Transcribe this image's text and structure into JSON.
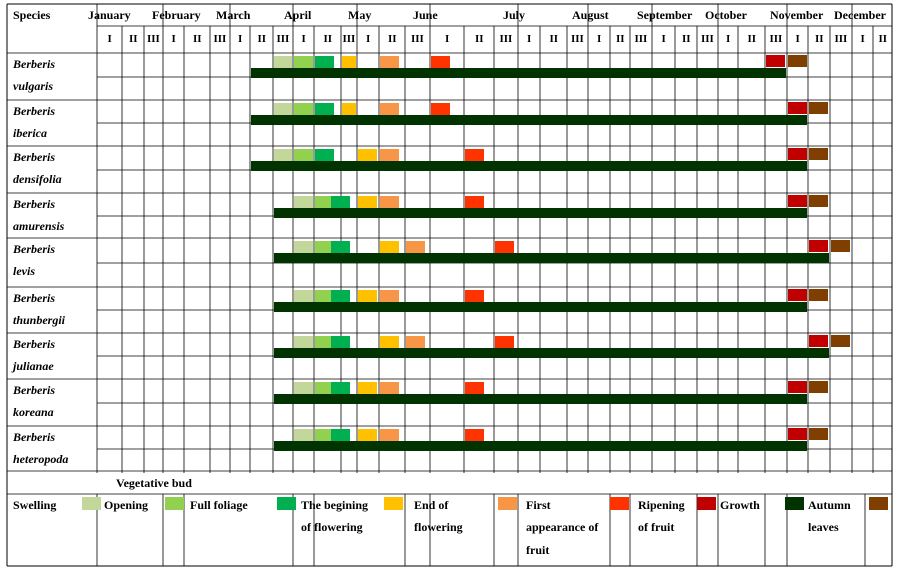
{
  "header": {
    "species_label": "Species",
    "months": [
      "January",
      "February",
      "March",
      "April",
      "May",
      "June",
      "July",
      "August",
      "September",
      "October",
      "November",
      "December"
    ],
    "decades": [
      "I",
      "II",
      "III"
    ]
  },
  "species": [
    {
      "genus": "Berberis",
      "epithet": "vulgaris"
    },
    {
      "genus": "Berberis",
      "epithet": "iberica"
    },
    {
      "genus": "Berberis",
      "epithet": "densifolia"
    },
    {
      "genus": "Berberis",
      "epithet": "amurensis"
    },
    {
      "genus": "Berberis",
      "epithet": "levis"
    },
    {
      "genus": "Berberis",
      "epithet": "thunbergii"
    },
    {
      "genus": "Berberis",
      "epithet": "julianae"
    },
    {
      "genus": "Berberis",
      "epithet": "koreana"
    },
    {
      "genus": "Berberis",
      "epithet": "heteropoda"
    }
  ],
  "legend": {
    "vegetative_bud": "Vegetative bud",
    "items": [
      {
        "key": "swelling",
        "line1": "Swelling",
        "line2": "",
        "line3": "",
        "color": "#c4d79b"
      },
      {
        "key": "opening",
        "line1": "Opening",
        "line2": "",
        "line3": "",
        "color": "#92d050"
      },
      {
        "key": "full_foliage",
        "line1": "Full foliage",
        "line2": "",
        "line3": "",
        "color": "#00b050"
      },
      {
        "key": "begin_flowering",
        "line1": "The begining",
        "line2": "of flowering",
        "line3": "",
        "color": "#ffc000"
      },
      {
        "key": "end_flowering",
        "line1": "End of",
        "line2": "flowering",
        "line3": "",
        "color": "#f79646"
      },
      {
        "key": "first_fruit",
        "line1": "First",
        "line2": "appearance of",
        "line3": "fruit",
        "color": "#ff3300"
      },
      {
        "key": "ripening",
        "line1": "Ripening",
        "line2": "of fruit",
        "line3": "",
        "color": "#c00000"
      },
      {
        "key": "growth",
        "line1": "Growth",
        "line2": "",
        "line3": "",
        "color": "#003300"
      },
      {
        "key": "autumn",
        "line1": "Autumn",
        "line2": "leaves",
        "line3": "",
        "color": "#7f3f00"
      }
    ]
  },
  "colors": {
    "swelling": "#c4d79b",
    "opening": "#92d050",
    "full_foliage": "#00b050",
    "begin_flowering": "#ffc000",
    "end_flowering": "#f79646",
    "first_fruit": "#ff3300",
    "ripening": "#c00000",
    "growth": "#003300",
    "autumn": "#7f3f00",
    "grid": "#000000"
  },
  "phenology": [
    {
      "species": "vulgaris",
      "marks": [
        [
          "swelling",
          "Mar III"
        ],
        [
          "opening",
          "Apr I"
        ],
        [
          "full_foliage",
          "Apr II"
        ],
        [
          "begin_flowering",
          "Apr III"
        ],
        [
          "end_flowering",
          "May II"
        ],
        [
          "first_fruit",
          "Jun I"
        ],
        [
          "ripening",
          "Oct III"
        ],
        [
          "autumn",
          "Nov I"
        ]
      ],
      "growth": [
        "Mar II",
        "Oct III"
      ]
    },
    {
      "species": "iberica",
      "marks": [
        [
          "swelling",
          "Mar III"
        ],
        [
          "opening",
          "Apr I"
        ],
        [
          "full_foliage",
          "Apr II"
        ],
        [
          "begin_flowering",
          "Apr III"
        ],
        [
          "end_flowering",
          "May II"
        ],
        [
          "first_fruit",
          "Jun I"
        ],
        [
          "ripening",
          "Nov I"
        ],
        [
          "autumn",
          "Nov II"
        ]
      ],
      "growth": [
        "Mar II",
        "Nov I"
      ]
    },
    {
      "species": "densifolia",
      "marks": [
        [
          "swelling",
          "Mar III"
        ],
        [
          "opening",
          "Apr I"
        ],
        [
          "full_foliage",
          "Apr II"
        ],
        [
          "begin_flowering",
          "May I"
        ],
        [
          "end_flowering",
          "May II"
        ],
        [
          "first_fruit",
          "Jun II"
        ],
        [
          "ripening",
          "Nov I"
        ],
        [
          "autumn",
          "Nov II"
        ]
      ],
      "growth": [
        "Mar II",
        "Nov I"
      ]
    },
    {
      "species": "amurensis",
      "marks": [
        [
          "swelling",
          "Apr I"
        ],
        [
          "opening",
          "Apr II"
        ],
        [
          "full_foliage",
          "Apr II"
        ],
        [
          "begin_flowering",
          "May I"
        ],
        [
          "end_flowering",
          "May II"
        ],
        [
          "first_fruit",
          "Jun II"
        ],
        [
          "ripening",
          "Nov I"
        ],
        [
          "autumn",
          "Nov II"
        ]
      ],
      "growth": [
        "Mar III",
        "Nov I"
      ]
    },
    {
      "species": "levis",
      "marks": [
        [
          "swelling",
          "Apr I"
        ],
        [
          "opening",
          "Apr II"
        ],
        [
          "full_foliage",
          "Apr II"
        ],
        [
          "begin_flowering",
          "May II"
        ],
        [
          "end_flowering",
          "May III"
        ],
        [
          "first_fruit",
          "Jun III"
        ],
        [
          "ripening",
          "Nov II"
        ],
        [
          "autumn",
          "Nov III"
        ]
      ],
      "growth": [
        "Mar III",
        "Nov II"
      ]
    },
    {
      "species": "thunbergii",
      "marks": [
        [
          "swelling",
          "Apr I"
        ],
        [
          "opening",
          "Apr II"
        ],
        [
          "full_foliage",
          "Apr II"
        ],
        [
          "begin_flowering",
          "May I"
        ],
        [
          "end_flowering",
          "May II"
        ],
        [
          "first_fruit",
          "Jun II"
        ],
        [
          "ripening",
          "Nov I"
        ],
        [
          "autumn",
          "Nov II"
        ]
      ],
      "growth": [
        "Mar III",
        "Nov I"
      ]
    },
    {
      "species": "julianae",
      "marks": [
        [
          "swelling",
          "Apr I"
        ],
        [
          "opening",
          "Apr II"
        ],
        [
          "full_foliage",
          "Apr II"
        ],
        [
          "begin_flowering",
          "May II"
        ],
        [
          "end_flowering",
          "May III"
        ],
        [
          "first_fruit",
          "Jun III"
        ],
        [
          "ripening",
          "Nov II"
        ],
        [
          "autumn",
          "Nov III"
        ]
      ],
      "growth": [
        "Mar III",
        "Nov II"
      ]
    },
    {
      "species": "koreana",
      "marks": [
        [
          "swelling",
          "Apr I"
        ],
        [
          "opening",
          "Apr II"
        ],
        [
          "full_foliage",
          "Apr II"
        ],
        [
          "begin_flowering",
          "May I"
        ],
        [
          "end_flowering",
          "May II"
        ],
        [
          "first_fruit",
          "Jun II"
        ],
        [
          "ripening",
          "Nov I"
        ],
        [
          "autumn",
          "Nov II"
        ]
      ],
      "growth": [
        "Mar III",
        "Nov I"
      ]
    },
    {
      "species": "heteropoda",
      "marks": [
        [
          "swelling",
          "Apr I"
        ],
        [
          "opening",
          "Apr II"
        ],
        [
          "full_foliage",
          "Apr II"
        ],
        [
          "begin_flowering",
          "May I"
        ],
        [
          "end_flowering",
          "May II"
        ],
        [
          "first_fruit",
          "Jun II"
        ],
        [
          "ripening",
          "Nov I"
        ],
        [
          "autumn",
          "Nov II"
        ]
      ],
      "growth": [
        "Mar III",
        "Nov I"
      ]
    }
  ]
}
